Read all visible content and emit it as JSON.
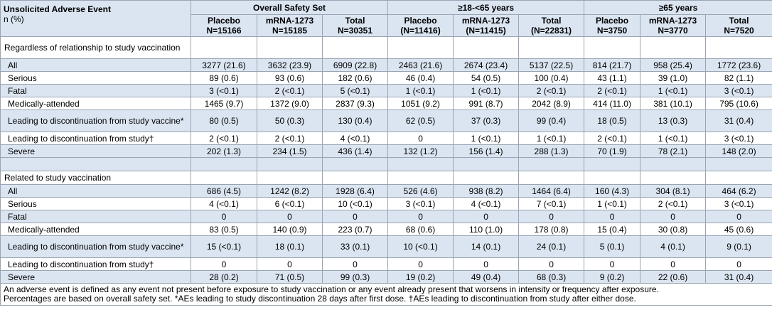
{
  "corner": {
    "title": "Unsolicited Adverse Event",
    "subtitle": "n (%)"
  },
  "groups": [
    "Overall Safety Set",
    "≥18-<65 years",
    "≥65 years"
  ],
  "subheaders": [
    {
      "arm": "Placebo",
      "n": "N=15166"
    },
    {
      "arm": "mRNA-1273",
      "n": "N=15185"
    },
    {
      "arm": "Total",
      "n": "N=30351"
    },
    {
      "arm": "Placebo",
      "n": "(N=11416)"
    },
    {
      "arm": "mRNA-1273",
      "n": "(N=11415)"
    },
    {
      "arm": "Total",
      "n": "(N=22831)"
    },
    {
      "arm": "Placebo",
      "n": "N=3750"
    },
    {
      "arm": "mRNA-1273",
      "n": "N=3770"
    },
    {
      "arm": "Total",
      "n": "N=7520"
    }
  ],
  "sections": [
    {
      "title": "Regardless of relationship to study vaccination",
      "rows": [
        {
          "label": "All",
          "values": [
            "3277 (21.6)",
            "3632 (23.9)",
            "6909 (22.8)",
            "2463 (21.6)",
            "2674 (23.4)",
            "5137 (22.5)",
            "814 (21.7)",
            "958 (25.4)",
            "1772 (23.6)"
          ]
        },
        {
          "label": "Serious",
          "values": [
            "89 (0.6)",
            "93 (0.6)",
            "182 (0.6)",
            "46 (0.4)",
            "54 (0.5)",
            "100 (0.4)",
            "43 (1.1)",
            "39 (1.0)",
            "82 (1.1)"
          ]
        },
        {
          "label": "Fatal",
          "values": [
            "3 (<0.1)",
            "2 (<0.1)",
            "5 (<0.1)",
            "1 (<0.1)",
            "1 (<0.1)",
            "2 (<0.1)",
            "2 (<0.1)",
            "1 (<0.1)",
            "3 (<0.1)"
          ]
        },
        {
          "label": "Medically-attended",
          "values": [
            "1465 (9.7)",
            "1372 (9.0)",
            "2837 (9.3)",
            "1051 (9.2)",
            "991 (8.7)",
            "2042 (8.9)",
            "414 (11.0)",
            "381 (10.1)",
            "795 (10.6)"
          ]
        },
        {
          "label": "Leading to discontinuation from study vaccine*",
          "values": [
            "80 (0.5)",
            "50 (0.3)",
            "130 (0.4)",
            "62 (0.5)",
            "37 (0.3)",
            "99 (0.4)",
            "18 (0.5)",
            "13 (0.3)",
            "31 (0.4)"
          ]
        },
        {
          "label": "Leading to discontinuation from study†",
          "values": [
            "2 (<0.1)",
            "2 (<0.1)",
            "4 (<0.1)",
            "0",
            "1 (<0.1)",
            "1 (<0.1)",
            "2 (<0.1)",
            "1 (<0.1)",
            "3 (<0.1)"
          ]
        },
        {
          "label": "Severe",
          "values": [
            "202 (1.3)",
            "234 (1.5)",
            "436 (1.4)",
            "132 (1.2)",
            "156 (1.4)",
            "288 (1.3)",
            "70 (1.9)",
            "78 (2.1)",
            "148 (2.0)"
          ]
        }
      ]
    },
    {
      "title": "Related to study vaccination",
      "rows": [
        {
          "label": "All",
          "values": [
            "686 (4.5)",
            "1242 (8.2)",
            "1928 (6.4)",
            "526 (4.6)",
            "938 (8.2)",
            "1464 (6.4)",
            "160 (4.3)",
            "304 (8.1)",
            "464 (6.2)"
          ]
        },
        {
          "label": "Serious",
          "values": [
            "4 (<0.1)",
            "6 (<0.1)",
            "10 (<0.1)",
            "3 (<0.1)",
            "4 (<0.1)",
            "7 (<0.1)",
            "1 (<0.1)",
            "2 (<0.1)",
            "3 (<0.1)"
          ]
        },
        {
          "label": "Fatal",
          "values": [
            "0",
            "0",
            "0",
            "0",
            "0",
            "0",
            "0",
            "0",
            "0"
          ]
        },
        {
          "label": "Medically-attended",
          "values": [
            "83 (0.5)",
            "140 (0.9)",
            "223 (0.7)",
            "68 (0.6)",
            "110 (1.0)",
            "178 (0.8)",
            "15 (0.4)",
            "30 (0.8)",
            "45 (0.6)"
          ]
        },
        {
          "label": "Leading to discontinuation from study vaccine*",
          "values": [
            "15 (<0.1)",
            "18 (0.1)",
            "33 (0.1)",
            "10 (<0.1)",
            "14 (0.1)",
            "24 (0.1)",
            "5 (0.1)",
            "4 (0.1)",
            "9 (0.1)"
          ]
        },
        {
          "label": "Leading to discontinuation from study†",
          "values": [
            "0",
            "0",
            "0",
            "0",
            "0",
            "0",
            "0",
            "0",
            "0"
          ]
        },
        {
          "label": "Severe",
          "values": [
            "28 (0.2)",
            "71 (0.5)",
            "99 (0.3)",
            "19 (0.2)",
            "49 (0.4)",
            "68 (0.3)",
            "9 (0.2)",
            "22 (0.6)",
            "31 (0.4)"
          ]
        }
      ]
    }
  ],
  "footnote": {
    "line1": "An adverse event is defined as any event not present before exposure to study vaccination or any event already present that worsens in intensity or frequency after exposure.",
    "line2": "Percentages are based on overall safety set.  *AEs leading to study discontinuation 28 days after first dose. †AEs leading to discontinuation from study after either dose."
  },
  "colors": {
    "header_fill": "#dbe5f1",
    "border": "#9aa4b2"
  }
}
